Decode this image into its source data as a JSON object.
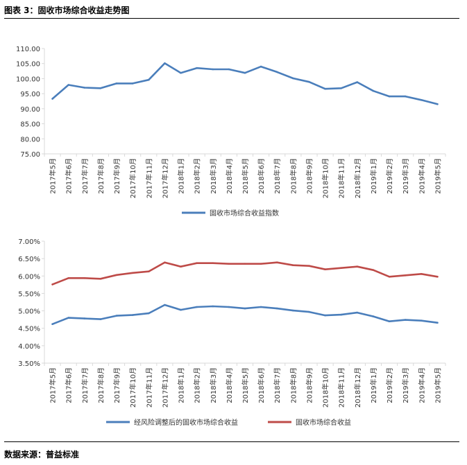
{
  "header": {
    "title": "图表 3：固收市场综合收益走势图"
  },
  "footer": {
    "source": "数据来源：普益标准"
  },
  "colors": {
    "blue": "#4a7ebb",
    "red": "#be4b48",
    "axis": "#d9d9d9"
  },
  "chart_data": [
    {
      "type": "line",
      "categories": [
        "2017年5月",
        "2017年6月",
        "2017年7月",
        "2017年8月",
        "2017年9月",
        "2017年10月",
        "2017年11月",
        "2017年12月",
        "2018年1月",
        "2018年2月",
        "2018年3月",
        "2018年4月",
        "2018年5月",
        "2018年6月",
        "2018年7月",
        "2018年8月",
        "2018年9月",
        "2018年10月",
        "2018年11月",
        "2018年12月",
        "2019年1月",
        "2019年2月",
        "2019年3月",
        "2019年4月",
        "2019年5月"
      ],
      "series": [
        {
          "name": "固收市场综合收益指数",
          "color": "#4a7ebb",
          "values": [
            93.3,
            97.9,
            97.0,
            96.8,
            98.4,
            98.4,
            99.6,
            105.1,
            101.9,
            103.5,
            103.1,
            103.1,
            101.9,
            104.0,
            102.2,
            100.1,
            98.9,
            96.6,
            96.8,
            98.8,
            95.9,
            94.1,
            94.1,
            92.9,
            91.5
          ]
        }
      ],
      "ylim": [
        75,
        110
      ],
      "yticks": [
        "110.00",
        "105.00",
        "100.00",
        "95.00",
        "90.00",
        "85.00",
        "80.00",
        "75.00"
      ],
      "legend": "bottom",
      "grid": false
    },
    {
      "type": "line",
      "categories": [
        "2017年5月",
        "2017年6月",
        "2017年7月",
        "2017年8月",
        "2017年9月",
        "2017年10月",
        "2017年11月",
        "2017年12月",
        "2018年1月",
        "2018年2月",
        "2018年3月",
        "2018年4月",
        "2018年5月",
        "2018年6月",
        "2018年7月",
        "2018年8月",
        "2018年9月",
        "2018年10月",
        "2018年11月",
        "2018年12月",
        "2019年1月",
        "2019年2月",
        "2019年3月",
        "2019年4月",
        "2019年5月"
      ],
      "series": [
        {
          "name": "经风险调整后的固收市场综合收益",
          "color": "#4a7ebb",
          "values": [
            4.62,
            4.8,
            4.78,
            4.76,
            4.86,
            4.88,
            4.93,
            5.17,
            5.03,
            5.11,
            5.13,
            5.11,
            5.07,
            5.11,
            5.07,
            5.01,
            4.97,
            4.87,
            4.89,
            4.95,
            4.84,
            4.7,
            4.74,
            4.72,
            4.66
          ]
        },
        {
          "name": "固收市场综合收益",
          "color": "#be4b48",
          "values": [
            5.76,
            5.94,
            5.94,
            5.92,
            6.03,
            6.09,
            6.13,
            6.39,
            6.27,
            6.37,
            6.37,
            6.35,
            6.35,
            6.35,
            6.39,
            6.31,
            6.29,
            6.19,
            6.23,
            6.27,
            6.17,
            5.98,
            6.02,
            6.06,
            5.98
          ]
        }
      ],
      "ylim": [
        3.5,
        7.0
      ],
      "yticks": [
        "7.00%",
        "6.50%",
        "6.00%",
        "5.50%",
        "5.00%",
        "4.50%",
        "4.00%",
        "3.50%"
      ],
      "legend": "bottom",
      "grid": false
    }
  ]
}
